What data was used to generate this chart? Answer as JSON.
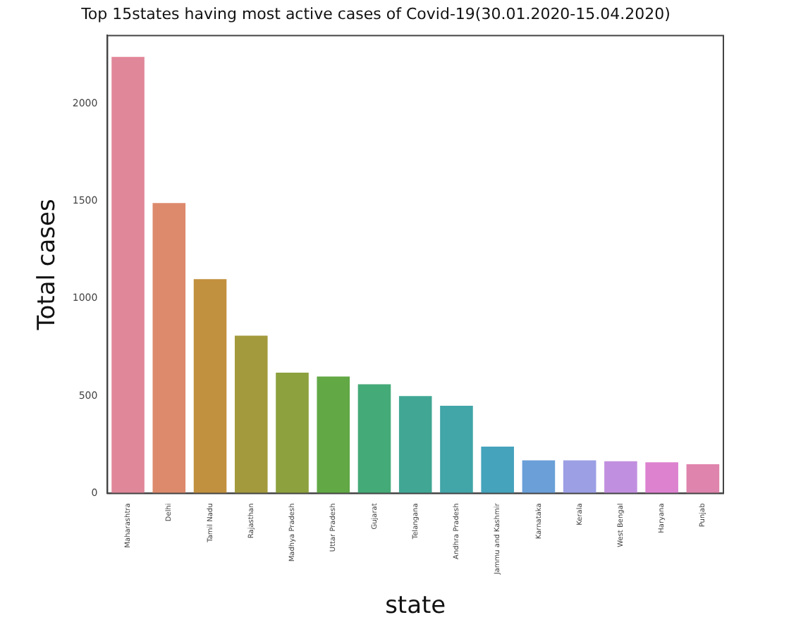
{
  "chart_data": {
    "type": "bar",
    "title": "Top 15states having most active cases of Covid-19(30.01.2020-15.04.2020)",
    "xlabel": "state",
    "ylabel": "Total cases",
    "categories": [
      "Maharashtra",
      "Delhi",
      "Tamil Nadu",
      "Rajasthan",
      "Madhya Pradesh",
      "Uttar Pradesh",
      "Gujarat",
      "Telangana",
      "Andhra Pradesh",
      "Jammu and Kashmir",
      "Karnataka",
      "Kerala",
      "West Bengal",
      "Haryana",
      "Punjab"
    ],
    "values": [
      2240,
      1490,
      1100,
      810,
      620,
      600,
      560,
      500,
      450,
      240,
      170,
      170,
      165,
      160,
      150
    ],
    "colors": [
      "#e1879a",
      "#dd8a6c",
      "#c2913f",
      "#a39a3d",
      "#8da13e",
      "#62a845",
      "#44aa78",
      "#41a794",
      "#42a5a8",
      "#45a3bc",
      "#6a9fd8",
      "#9c9fe4",
      "#c18fdf",
      "#dc82cf",
      "#df84ac"
    ],
    "ylim": [
      0,
      2350
    ],
    "yticks": [
      0,
      500,
      1000,
      1500,
      2000
    ],
    "grid": false
  }
}
